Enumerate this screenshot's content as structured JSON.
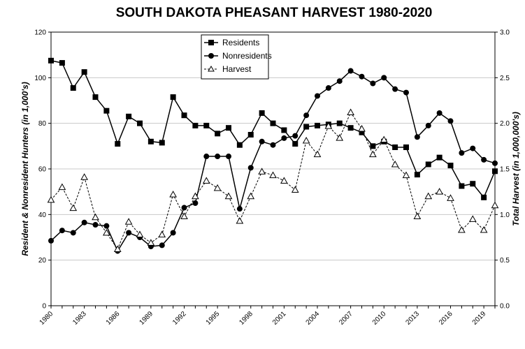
{
  "chart_data": {
    "type": "line",
    "title": "SOUTH DAKOTA PHEASANT HARVEST 1980-2020",
    "ylabel": "Resident & Nonresident Hunters (in 1,000's)",
    "y2label": "Total Harvest (in 1,000,000's)",
    "xlim": [
      1980,
      2020
    ],
    "ylim": [
      0,
      120
    ],
    "y2lim": [
      0,
      3.0
    ],
    "x_ticks": [
      "1980",
      "1983",
      "1986",
      "1989",
      "1992",
      "1995",
      "1998",
      "2001",
      "2004",
      "2007",
      "2010",
      "2013",
      "2016",
      "2019"
    ],
    "y_ticks": [
      "0",
      "20",
      "40",
      "60",
      "80",
      "100",
      "120"
    ],
    "y2_ticks": [
      "0.0",
      "0.5",
      "1.0",
      "1.5",
      "2.0",
      "2.5",
      "3.0"
    ],
    "grid": "horizontal",
    "legend_position": "top-center",
    "x": [
      1980,
      1981,
      1982,
      1983,
      1984,
      1985,
      1986,
      1987,
      1988,
      1989,
      1990,
      1991,
      1992,
      1993,
      1994,
      1995,
      1996,
      1997,
      1998,
      1999,
      2000,
      2001,
      2002,
      2003,
      2004,
      2005,
      2006,
      2007,
      2008,
      2009,
      2010,
      2011,
      2012,
      2013,
      2014,
      2015,
      2016,
      2017,
      2018,
      2019,
      2020
    ],
    "series": [
      {
        "name": "Residents",
        "axis": "left",
        "marker": "square",
        "line": "solid",
        "values": [
          107.5,
          106.5,
          95.5,
          102.5,
          91.5,
          85.5,
          71,
          83,
          80,
          72,
          71.5,
          91.5,
          83.5,
          79,
          79,
          75.5,
          78,
          70.5,
          75,
          84.5,
          80,
          77,
          71,
          78.5,
          79,
          79.5,
          80,
          78,
          76,
          70,
          72,
          69.5,
          69.5,
          57.5,
          62,
          65,
          61.5,
          52.5,
          53.5,
          47.5,
          59
        ]
      },
      {
        "name": "Nonresidents",
        "axis": "left",
        "marker": "circle",
        "line": "solid",
        "values": [
          28.5,
          33,
          32,
          36.5,
          35.5,
          35,
          24,
          32,
          30,
          26,
          26.5,
          32,
          43,
          45,
          65.5,
          65.5,
          65.5,
          42.5,
          60.5,
          72,
          70.5,
          73.5,
          74.5,
          83.5,
          92,
          95.5,
          98.5,
          103,
          100.5,
          97.5,
          100,
          95,
          93.5,
          74,
          79,
          84.5,
          81,
          67,
          69,
          64,
          62.5
        ]
      },
      {
        "name": "Harvest",
        "axis": "right",
        "marker": "triangle-open",
        "line": "dashed",
        "values": [
          1.16,
          1.3,
          1.07,
          1.41,
          0.97,
          0.8,
          0.62,
          0.92,
          0.78,
          0.69,
          0.78,
          1.22,
          0.98,
          1.2,
          1.37,
          1.29,
          1.2,
          0.93,
          1.2,
          1.47,
          1.43,
          1.37,
          1.27,
          1.81,
          1.66,
          1.97,
          1.84,
          2.12,
          1.94,
          1.66,
          1.82,
          1.55,
          1.43,
          0.98,
          1.2,
          1.25,
          1.18,
          0.83,
          0.95,
          0.83,
          1.1
        ]
      }
    ]
  }
}
